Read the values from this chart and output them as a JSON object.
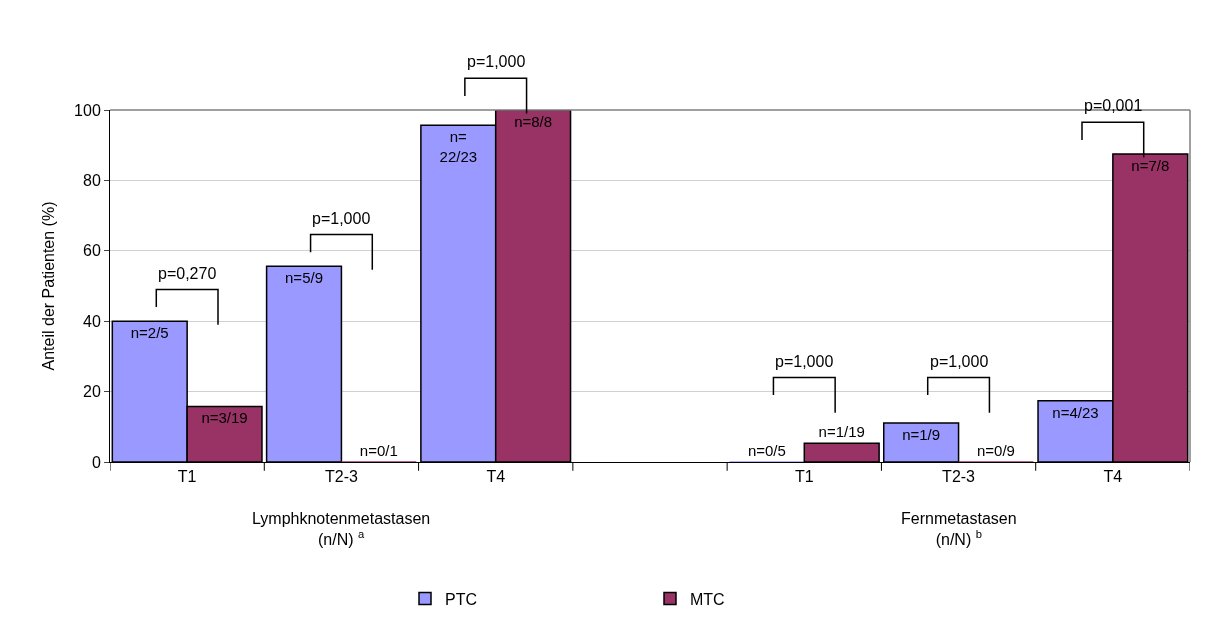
{
  "chart_data": {
    "type": "bar",
    "ylabel": "Anteil der Patienten (%)",
    "categories": [
      "T1",
      "T2-3",
      "T4",
      null,
      "T1",
      "T2-3",
      "T4"
    ],
    "series": [
      {
        "name": "PTC",
        "color": "#9999ff",
        "values": [
          40,
          55.6,
          95.7,
          null,
          0,
          11.1,
          17.4
        ],
        "value_labels": [
          "n=2/5",
          "n=5/9",
          "n=\n22/23",
          null,
          "n=0/5",
          "n=1/9",
          "n=4/23"
        ]
      },
      {
        "name": "MTC",
        "color": "#993366",
        "values": [
          15.8,
          0,
          100,
          null,
          5.3,
          0,
          87.5
        ],
        "value_labels": [
          "n=3/19",
          "n=0/1",
          "n=8/8",
          null,
          "n=1/19",
          "n=0/9",
          "n=7/8"
        ]
      }
    ],
    "ylim": [
      0,
      100
    ],
    "yticks": [
      0,
      20,
      40,
      60,
      80,
      100
    ],
    "grid": "y",
    "legend": "bottom",
    "annotations": [
      "p=0,270",
      "p=1,000",
      "p=1,000",
      "p=1,000",
      "p=1,000",
      "p=0,001",
      "Lymphknotenmetastasen\n(n/N) $^{a}$",
      "Fernmetastasen\n(n/N) $^{b}$"
    ]
  }
}
